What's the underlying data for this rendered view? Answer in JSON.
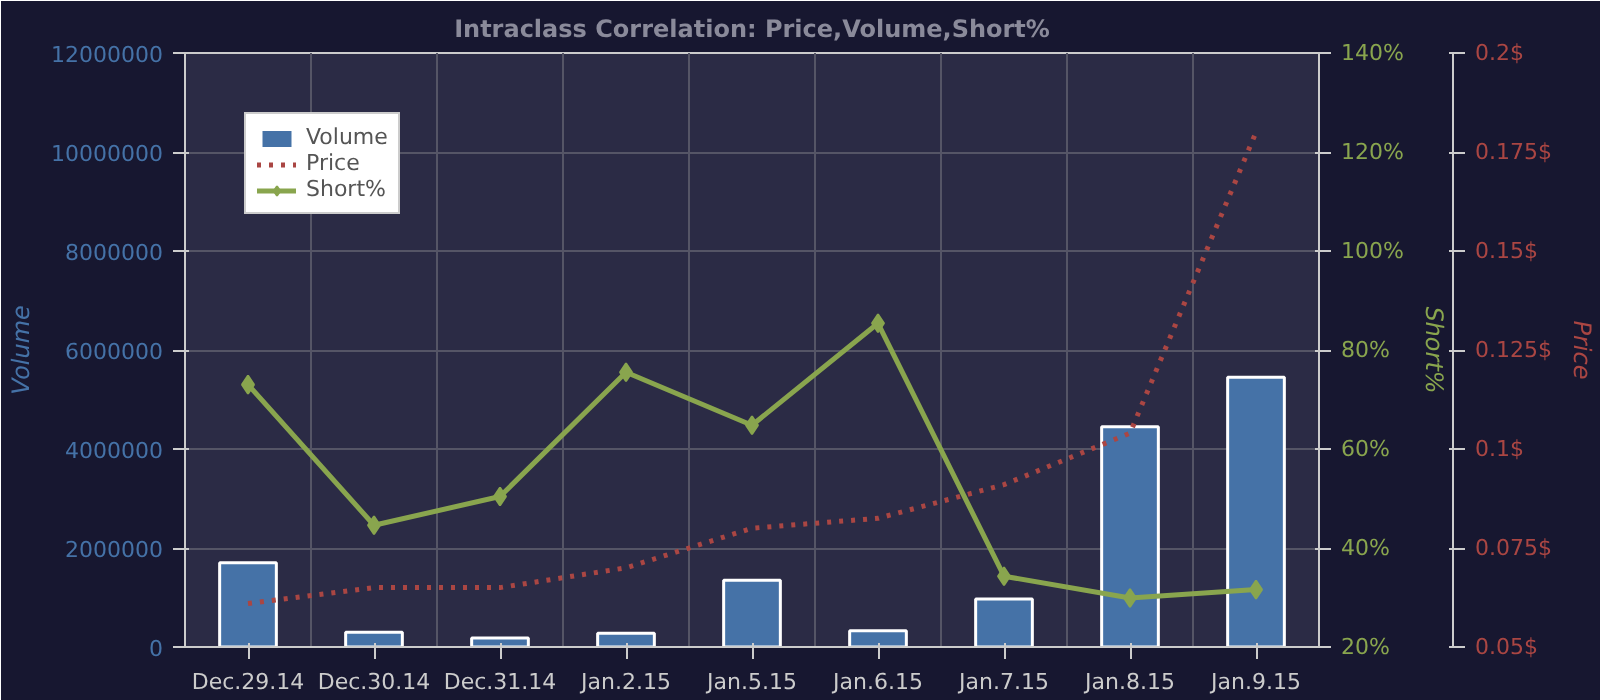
{
  "chart_data": {
    "type": "bar",
    "subtitle": "Intraclass Correlation: Price,Volume,Short%",
    "categories": [
      "Dec.29.14",
      "Dec.30.14",
      "Dec.31.14",
      "Jan.2.15",
      "Jan.5.15",
      "Jan.6.15",
      "Jan.7.15",
      "Jan.8.15",
      "Jan.9.15"
    ],
    "series": [
      {
        "name": "Volume",
        "color": "#4572a7",
        "values": [
          1700000,
          300000,
          180000,
          280000,
          1350000,
          330000,
          970000,
          4450000,
          5450000
        ]
      },
      {
        "name": "Price",
        "type": "line",
        "axis": "y3",
        "color": "#aa4643",
        "line_style": "dotted",
        "marker": "none",
        "values": [
          0.061,
          0.065,
          0.065,
          0.07,
          0.08,
          0.0825,
          0.091,
          0.104,
          0.18
        ]
      },
      {
        "name": "Short%",
        "type": "line",
        "axis": "y2",
        "color": "#89a54e",
        "line_style": "solid",
        "marker": "diamond",
        "values": [
          73,
          44.6,
          50.4,
          75.5,
          64.8,
          85.4,
          34.3,
          29.9,
          31.6
        ]
      }
    ],
    "ylabel": "Volume",
    "y2label": "Short%",
    "y3label": "Price",
    "ylim": [
      0,
      12000000
    ],
    "yticks": [
      0,
      2000000,
      4000000,
      6000000,
      8000000,
      10000000,
      12000000
    ],
    "y2lim": [
      20,
      140
    ],
    "y2ticks": [
      {
        "value": 20,
        "label": "20%"
      },
      {
        "value": 40,
        "label": "40%"
      },
      {
        "value": 60,
        "label": "60%"
      },
      {
        "value": 80,
        "label": "80%"
      },
      {
        "value": 100,
        "label": "100%"
      },
      {
        "value": 120,
        "label": "120%"
      },
      {
        "value": 140,
        "label": "140%"
      }
    ],
    "y3lim": [
      0.05,
      0.2
    ],
    "y3ticks": [
      {
        "value": 0.05,
        "label": "0.05$"
      },
      {
        "value": 0.075,
        "label": "0.075$"
      },
      {
        "value": 0.1,
        "label": "0.1$"
      },
      {
        "value": 0.125,
        "label": "0.125$"
      },
      {
        "value": 0.15,
        "label": "0.15$"
      },
      {
        "value": 0.175,
        "label": "0.175$"
      },
      {
        "value": 0.2,
        "label": "0.2$"
      }
    ],
    "grid": true,
    "legend": "top left"
  }
}
